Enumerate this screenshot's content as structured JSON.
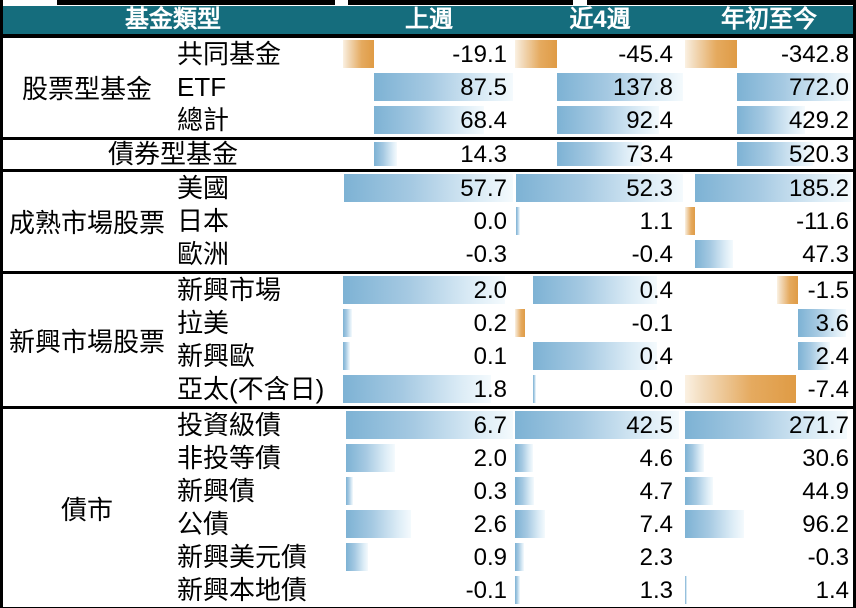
{
  "title": "fund-type weekly flow table",
  "colors": {
    "header_bg": "#156D7D",
    "positive_bar": "#7DB2D4",
    "negative_bar": "#DF9B45",
    "border": "#000000",
    "header_text": "#FFFFFF"
  },
  "header": {
    "fund_type": "基金類型",
    "last_week": "上週",
    "last_4_weeks": "近4週",
    "ytd": "年初至今"
  },
  "chart_data": {
    "type": "table",
    "columns": [
      "基金類型",
      "上週",
      "近4週",
      "年初至今"
    ],
    "legend": {
      "positive": "blue gradient bar",
      "negative": "orange gradient bar"
    },
    "groups": [
      {
        "label": "股票型基金",
        "rows": [
          {
            "name": "共同基金",
            "values": [
              -19.1,
              -45.4,
              -342.8
            ],
            "bars": [
              [
                0,
                0.179,
                "n"
              ],
              [
                0,
                0.248,
                "n"
              ],
              [
                0,
                0.308,
                "n"
              ]
            ]
          },
          {
            "name": "ETF",
            "values": [
              87.5,
              137.8,
              772.0
            ],
            "bars": [
              [
                0.179,
                0.811,
                "p"
              ],
              [
                0.248,
                0.742,
                "p"
              ],
              [
                0.308,
                0.682,
                "p"
              ]
            ]
          },
          {
            "name": "總計",
            "values": [
              68.4,
              92.4,
              429.2
            ],
            "bars": [
              [
                0.179,
                0.642,
                "p"
              ],
              [
                0.248,
                0.6,
                "p"
              ],
              [
                0.308,
                0.405,
                "p"
              ]
            ]
          }
        ]
      },
      {
        "label": "債券型基金",
        "merged": true,
        "rows": [
          {
            "name": "債券型基金",
            "values": [
              14.3,
              73.4,
              520.3
            ],
            "bars": [
              [
                0.179,
                0.134,
                "p"
              ],
              [
                0.248,
                0.5,
                "p"
              ],
              [
                0.308,
                0.455,
                "p"
              ]
            ]
          }
        ]
      },
      {
        "label": "成熟市場股票",
        "rows": [
          {
            "name": "美國",
            "values": [
              57.7,
              52.3,
              185.2
            ],
            "bars": [
              [
                0.005,
                0.985,
                "p"
              ],
              [
                0.008,
                0.982,
                "p"
              ],
              [
                0.059,
                0.931,
                "p"
              ]
            ]
          },
          {
            "name": "日本",
            "values": [
              0.0,
              1.1,
              -11.6
            ],
            "bars": [
              null,
              [
                0.008,
                0.021,
                "p"
              ],
              [
                0,
                0.059,
                "n"
              ]
            ]
          },
          {
            "name": "歐洲",
            "values": [
              -0.3,
              -0.4,
              47.3
            ],
            "bars": [
              null,
              null,
              [
                0.059,
                0.226,
                "p"
              ]
            ]
          }
        ]
      },
      {
        "label": "新興市場股票",
        "rows": [
          {
            "name": "新興市場",
            "values": [
              2.0,
              0.4,
              -1.5
            ],
            "bars": [
              [
                0,
                0.94,
                "p"
              ],
              [
                0.105,
                0.73,
                "p"
              ],
              [
                0.545,
                0.125,
                "n"
              ]
            ]
          },
          {
            "name": "拉美",
            "values": [
              0.2,
              -0.1,
              3.6
            ],
            "bars": [
              [
                0,
                0.055,
                "p"
              ],
              [
                0,
                0.058,
                "n"
              ],
              [
                0.672,
                0.285,
                "p"
              ]
            ]
          },
          {
            "name": "新興歐",
            "values": [
              0.1,
              0.4,
              2.4
            ],
            "bars": [
              [
                0,
                0.04,
                "p"
              ],
              [
                0.105,
                0.73,
                "p"
              ],
              [
                0.672,
                0.19,
                "p"
              ]
            ]
          },
          {
            "name": "亞太(不含日)",
            "values": [
              1.8,
              0.0,
              -7.4
            ],
            "bars": [
              [
                0,
                0.862,
                "p"
              ],
              [
                0.105,
                0.02,
                "p"
              ],
              [
                0,
                0.66,
                "n"
              ]
            ]
          }
        ]
      },
      {
        "label": "債市",
        "rows": [
          {
            "name": "投資級債",
            "values": [
              6.7,
              42.5,
              271.7
            ],
            "bars": [
              [
                0.015,
                0.975,
                "p"
              ],
              [
                0,
                0.965,
                "p"
              ],
              [
                0,
                0.965,
                "p"
              ]
            ]
          },
          {
            "name": "非投等債",
            "values": [
              2.0,
              4.6,
              30.6
            ],
            "bars": [
              [
                0.015,
                0.29,
                "p"
              ],
              [
                0,
                0.108,
                "p"
              ],
              [
                0,
                0.113,
                "p"
              ]
            ]
          },
          {
            "name": "新興債",
            "values": [
              0.3,
              4.7,
              44.9
            ],
            "bars": [
              [
                0.015,
                0.045,
                "p"
              ],
              [
                0,
                0.111,
                "p"
              ],
              [
                0,
                0.165,
                "p"
              ]
            ]
          },
          {
            "name": "公債",
            "values": [
              2.6,
              7.4,
              96.2
            ],
            "bars": [
              [
                0.015,
                0.38,
                "p"
              ],
              [
                0,
                0.174,
                "p"
              ],
              [
                0,
                0.352,
                "p"
              ]
            ]
          },
          {
            "name": "新興美元債",
            "values": [
              0.9,
              2.3,
              -0.3
            ],
            "bars": [
              [
                0.015,
                0.13,
                "p"
              ],
              [
                0,
                0.054,
                "p"
              ],
              null
            ]
          },
          {
            "name": "新興本地債",
            "values": [
              -0.1,
              1.3,
              1.4
            ],
            "bars": [
              null,
              [
                0,
                0.031,
                "p"
              ],
              [
                0,
                0.012,
                "p"
              ]
            ]
          }
        ]
      }
    ]
  }
}
